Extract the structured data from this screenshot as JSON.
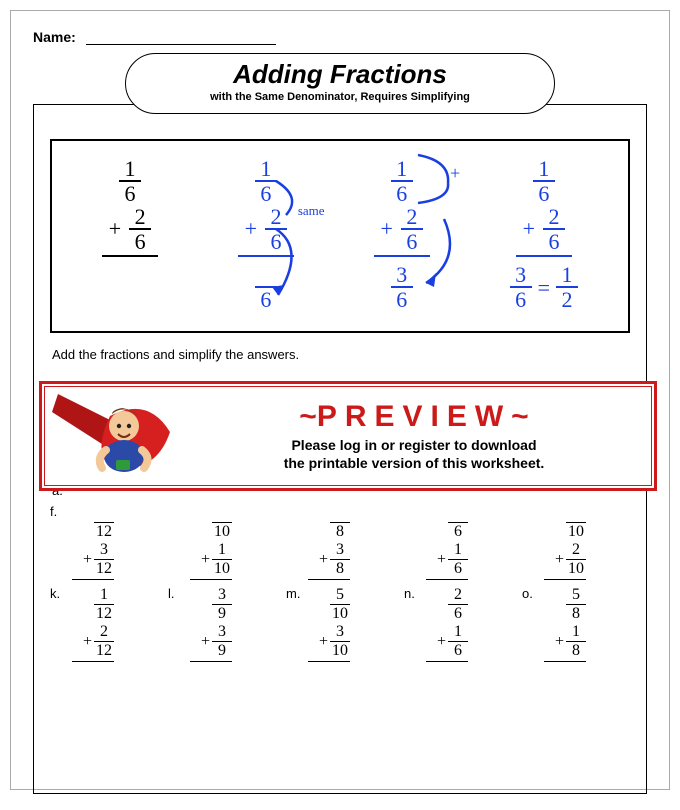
{
  "header": {
    "name_label": "Name:"
  },
  "title": {
    "main": "Adding Fractions",
    "sub": "with the Same Denominator, Requires Simplifying"
  },
  "colors": {
    "accent_blue": "#1a3fe0",
    "preview_red": "#cc1a1a",
    "black": "#000000",
    "bg": "#ffffff"
  },
  "example": {
    "same_label": "same",
    "step1": {
      "f1": {
        "n": "1",
        "d": "6"
      },
      "f2": {
        "n": "2",
        "d": "6"
      }
    },
    "step2": {
      "f1": {
        "n": "1",
        "d": "6"
      },
      "f2": {
        "n": "2",
        "d": "6"
      },
      "result_d": "6"
    },
    "step3": {
      "f1": {
        "n": "1",
        "d": "6"
      },
      "f2": {
        "n": "2",
        "d": "6"
      },
      "result": {
        "n": "3",
        "d": "6"
      }
    },
    "step4": {
      "f1": {
        "n": "1",
        "d": "6"
      },
      "f2": {
        "n": "2",
        "d": "6"
      },
      "result": {
        "n": "3",
        "d": "6"
      },
      "simplified": {
        "n": "1",
        "d": "2"
      },
      "equals": "="
    }
  },
  "instructions": "Add the fractions and simplify the answers.",
  "row_a_label": "a.",
  "preview": {
    "title": "~PREVIEW~",
    "message_l1": "Please log in or register to download",
    "message_l2": "the printable version of this worksheet."
  },
  "problems_row2": [
    {
      "lbl": "f.",
      "f1": {
        "n": "",
        "d": "12"
      },
      "f2": {
        "n": "3",
        "d": "12"
      }
    },
    {
      "lbl": "",
      "f1": {
        "n": "",
        "d": "10"
      },
      "f2": {
        "n": "1",
        "d": "10"
      }
    },
    {
      "lbl": "",
      "f1": {
        "n": "",
        "d": "8"
      },
      "f2": {
        "n": "3",
        "d": "8"
      }
    },
    {
      "lbl": "",
      "f1": {
        "n": "",
        "d": "6"
      },
      "f2": {
        "n": "1",
        "d": "6"
      }
    },
    {
      "lbl": "",
      "f1": {
        "n": "",
        "d": "10"
      },
      "f2": {
        "n": "2",
        "d": "10"
      }
    }
  ],
  "problems_row3": [
    {
      "lbl": "k.",
      "f1": {
        "n": "1",
        "d": "12"
      },
      "f2": {
        "n": "2",
        "d": "12"
      }
    },
    {
      "lbl": "l.",
      "f1": {
        "n": "3",
        "d": "9"
      },
      "f2": {
        "n": "3",
        "d": "9"
      }
    },
    {
      "lbl": "m.",
      "f1": {
        "n": "5",
        "d": "10"
      },
      "f2": {
        "n": "3",
        "d": "10"
      }
    },
    {
      "lbl": "n.",
      "f1": {
        "n": "2",
        "d": "6"
      },
      "f2": {
        "n": "1",
        "d": "6"
      }
    },
    {
      "lbl": "o.",
      "f1": {
        "n": "5",
        "d": "8"
      },
      "f2": {
        "n": "1",
        "d": "8"
      }
    }
  ]
}
